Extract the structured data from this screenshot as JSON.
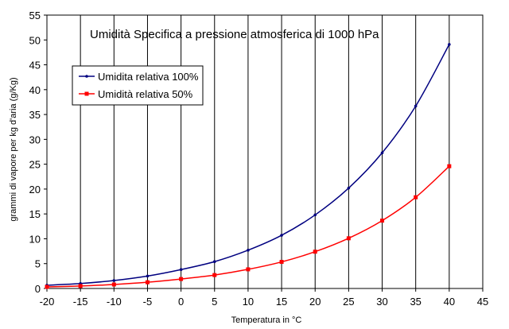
{
  "chart_data": {
    "type": "line",
    "title": "Umidità Specifica a pressione atmosferica di 1000 hPa",
    "xlabel": "Temperatura in °C",
    "ylabel": "grammi di vapore per kg d'aria (g/Kg)",
    "xlim": [
      -20,
      45
    ],
    "ylim": [
      0,
      55
    ],
    "x_ticks": [
      -20,
      -15,
      -10,
      -5,
      0,
      5,
      10,
      15,
      20,
      25,
      30,
      35,
      40,
      45
    ],
    "y_ticks": [
      0,
      5,
      10,
      15,
      20,
      25,
      30,
      35,
      40,
      45,
      50,
      55
    ],
    "grid": "vertical",
    "legend_position": "top-left",
    "x": [
      -20,
      -15,
      -10,
      -5,
      0,
      5,
      10,
      15,
      20,
      25,
      30,
      35,
      40
    ],
    "series": [
      {
        "name": "Umidita relativa 100%",
        "color": "#000080",
        "marker": "dot",
        "values": [
          0.65,
          1.0,
          1.6,
          2.5,
          3.8,
          5.4,
          7.7,
          10.7,
          14.8,
          20.2,
          27.3,
          36.7,
          49.1
        ]
      },
      {
        "name": "Umidità relativa 50%",
        "color": "#ff0000",
        "marker": "square",
        "values": [
          0.32,
          0.5,
          0.8,
          1.25,
          1.9,
          2.7,
          3.85,
          5.35,
          7.4,
          10.1,
          13.65,
          18.35,
          24.6
        ]
      }
    ]
  }
}
